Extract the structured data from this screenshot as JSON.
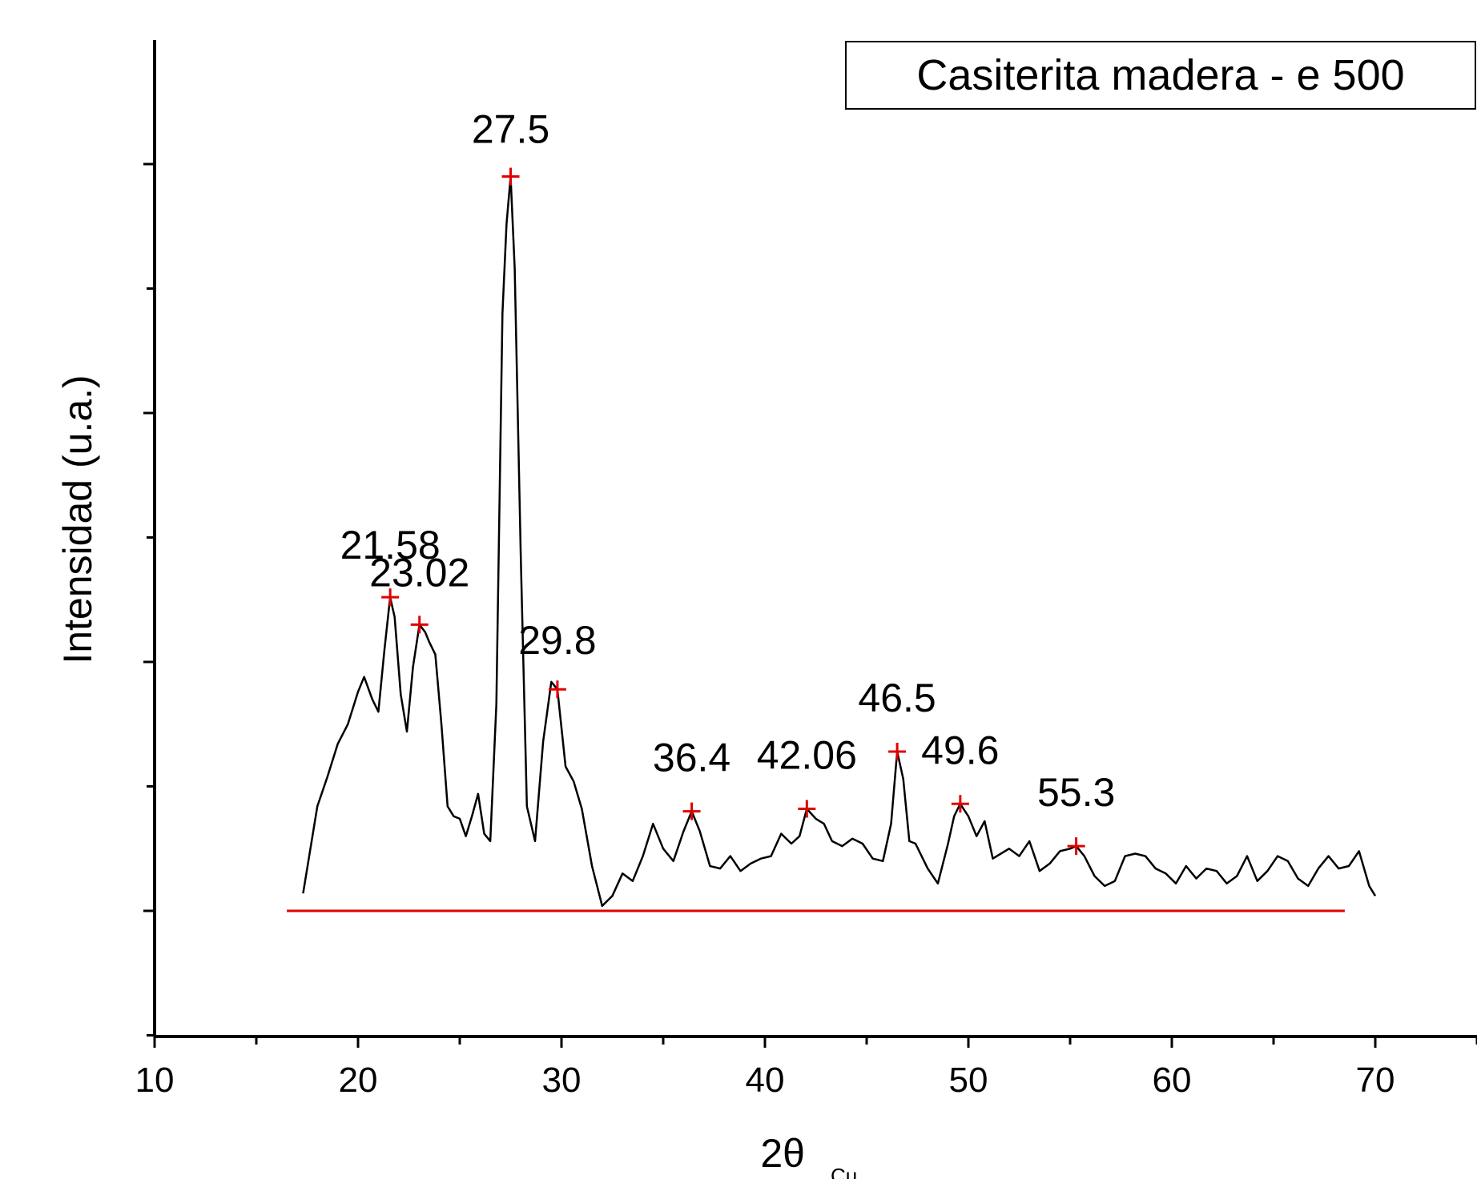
{
  "chart_data": {
    "type": "line",
    "title": "",
    "xlabel": "2θ",
    "xlabel_subscript": "Cu",
    "ylabel": "Intensidad (u.a.)",
    "xlim": [
      10,
      75
    ],
    "ylim": [
      -0.5,
      3.2
    ],
    "x_ticks": [
      10,
      20,
      30,
      40,
      50,
      60,
      70
    ],
    "x_tick_labels": [
      "10",
      "20",
      "30",
      "40",
      "50",
      "60",
      "70"
    ],
    "y_tick_labels_shown": false,
    "grid": false,
    "legend": {
      "position": "top-right",
      "entries": [
        "Casiterita madera - e 500"
      ]
    },
    "colors": {
      "series": "#000000",
      "markers": "#e00000",
      "baseline": "#e00000"
    },
    "series": [
      {
        "x": [
          17.3,
          18.0,
          18.5,
          19.0,
          19.5,
          20.0,
          20.3,
          20.7,
          21.0,
          21.3,
          21.58,
          21.8,
          22.1,
          22.4,
          22.7,
          23.02,
          23.3,
          23.5,
          23.8,
          24.1,
          24.4,
          24.7,
          25.0,
          25.3,
          25.6,
          25.9,
          26.2,
          26.5,
          26.8,
          27.1,
          27.3,
          27.5,
          27.7,
          28.0,
          28.3,
          28.7,
          29.1,
          29.5,
          29.8,
          30.2,
          30.6,
          31.0,
          31.5,
          32.0,
          32.5,
          33.0,
          33.5,
          34.0,
          34.5,
          35.0,
          35.5,
          36.0,
          36.4,
          36.8,
          37.3,
          37.8,
          38.3,
          38.8,
          39.3,
          39.8,
          40.3,
          40.8,
          41.3,
          41.7,
          42.06,
          42.5,
          42.9,
          43.3,
          43.8,
          44.3,
          44.8,
          45.3,
          45.8,
          46.2,
          46.5,
          46.8,
          47.1,
          47.4,
          47.7,
          48.0,
          48.5,
          49.0,
          49.3,
          49.6,
          50.0,
          50.4,
          50.8,
          51.2,
          51.6,
          52.0,
          52.5,
          53.0,
          53.5,
          54.0,
          54.5,
          55.0,
          55.3,
          55.7,
          56.2,
          56.7,
          57.2,
          57.7,
          58.2,
          58.7,
          59.2,
          59.7,
          60.2,
          60.7,
          61.2,
          61.7,
          62.2,
          62.7,
          63.2,
          63.7,
          64.2,
          64.7,
          65.2,
          65.7,
          66.2,
          66.7,
          67.2,
          67.7,
          68.2,
          68.7,
          69.2,
          69.7,
          70.0
        ],
        "y": [
          0.07,
          0.42,
          0.54,
          0.67,
          0.75,
          0.88,
          0.94,
          0.85,
          0.8,
          1.05,
          1.26,
          1.18,
          0.87,
          0.72,
          0.98,
          1.15,
          1.12,
          1.08,
          1.03,
          0.75,
          0.42,
          0.38,
          0.37,
          0.3,
          0.38,
          0.47,
          0.31,
          0.28,
          0.83,
          2.4,
          2.76,
          2.95,
          2.58,
          1.42,
          0.42,
          0.28,
          0.68,
          0.92,
          0.89,
          0.58,
          0.52,
          0.41,
          0.18,
          0.02,
          0.06,
          0.15,
          0.12,
          0.22,
          0.35,
          0.25,
          0.2,
          0.32,
          0.4,
          0.32,
          0.18,
          0.17,
          0.22,
          0.16,
          0.19,
          0.21,
          0.22,
          0.31,
          0.27,
          0.3,
          0.41,
          0.37,
          0.35,
          0.28,
          0.26,
          0.29,
          0.27,
          0.21,
          0.2,
          0.35,
          0.64,
          0.53,
          0.28,
          0.27,
          0.22,
          0.17,
          0.11,
          0.27,
          0.38,
          0.43,
          0.38,
          0.3,
          0.36,
          0.21,
          0.23,
          0.25,
          0.22,
          0.28,
          0.16,
          0.19,
          0.24,
          0.25,
          0.26,
          0.22,
          0.14,
          0.1,
          0.12,
          0.22,
          0.23,
          0.22,
          0.17,
          0.15,
          0.11,
          0.18,
          0.13,
          0.17,
          0.16,
          0.11,
          0.14,
          0.22,
          0.12,
          0.16,
          0.22,
          0.2,
          0.13,
          0.1,
          0.17,
          0.22,
          0.17,
          0.18,
          0.24,
          0.1,
          0.06
        ]
      }
    ],
    "peaks": [
      {
        "x": 21.58,
        "y": 1.26,
        "label": "21.58"
      },
      {
        "x": 23.02,
        "y": 1.15,
        "label": "23.02"
      },
      {
        "x": 27.5,
        "y": 2.95,
        "label": "27.5"
      },
      {
        "x": 29.8,
        "y": 0.89,
        "label": "29.8"
      },
      {
        "x": 36.4,
        "y": 0.4,
        "label": "36.4"
      },
      {
        "x": 42.06,
        "y": 0.41,
        "label": "42.06"
      },
      {
        "x": 46.5,
        "y": 0.64,
        "label": "46.5"
      },
      {
        "x": 49.6,
        "y": 0.43,
        "label": "49.6"
      },
      {
        "x": 55.3,
        "y": 0.26,
        "label": "55.3"
      }
    ],
    "baseline": {
      "x_start": 16.5,
      "x_end": 68.5,
      "y": 0
    }
  }
}
